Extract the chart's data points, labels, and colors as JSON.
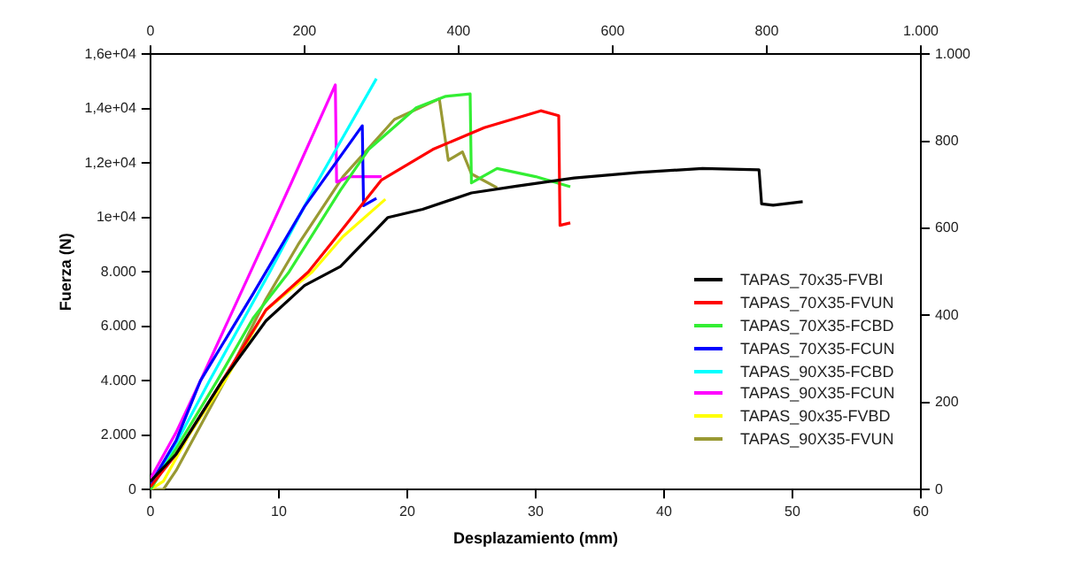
{
  "chart_data": {
    "type": "line",
    "xlabel": "Desplazamiento (mm)",
    "ylabel": "Fuerza (N)",
    "xlim": [
      0,
      60
    ],
    "xticks": [
      0,
      10,
      20,
      30,
      40,
      50,
      60
    ],
    "ylim": [
      0,
      16000
    ],
    "yticks": [
      0,
      {
        "value": 2000,
        "label": "2.000"
      },
      {
        "value": 4000,
        "label": "4.000"
      },
      {
        "value": 6000,
        "label": "6.000"
      },
      {
        "value": 8000,
        "label": "8.000"
      },
      {
        "value": 10000,
        "label": "1e+04"
      },
      {
        "value": 12000,
        "label": "1,2e+04"
      },
      {
        "value": 14000,
        "label": "1,4e+04"
      },
      {
        "value": 16000,
        "label": "1,6e+04"
      }
    ],
    "x2lim": [
      0,
      1000
    ],
    "x2ticks": [
      0,
      200,
      400,
      600,
      800,
      {
        "value": 1000,
        "label": "1.000"
      }
    ],
    "y2lim": [
      0,
      1000
    ],
    "y2ticks": [
      0,
      200,
      400,
      600,
      800,
      {
        "value": 1000,
        "label": "1.000"
      }
    ],
    "grid": false,
    "legend": "right",
    "marker": "none",
    "line_style": "solid",
    "series": [
      {
        "name": "TAPAS_70x35-FVBI",
        "color": "#000000",
        "x": [
          0,
          2,
          5.6,
          9,
          12,
          14.8,
          18.5,
          21.2,
          25,
          28.5,
          33,
          38,
          43,
          47.4,
          47.6,
          48.5,
          50.8
        ],
        "values": [
          300,
          1300,
          4000,
          6200,
          7500,
          8200,
          10000,
          10300,
          10900,
          11150,
          11450,
          11650,
          11800,
          11750,
          10500,
          10450,
          10580
        ]
      },
      {
        "name": "TAPAS_70X35-FVUN",
        "color": "#ff0000",
        "x": [
          0,
          2,
          5.6,
          9,
          12.3,
          14,
          18,
          22,
          26,
          30.4,
          31.8,
          31.9,
          32.7
        ],
        "values": [
          100,
          1300,
          4000,
          6600,
          8000,
          9000,
          11380,
          12500,
          13300,
          13920,
          13740,
          9710,
          9800
        ]
      },
      {
        "name": "TAPAS_70X35-FCBD",
        "color": "#33ee33",
        "x": [
          0,
          2,
          5.2,
          8,
          10.8,
          14.8,
          17,
          20.7,
          23,
          24.9,
          25,
          27,
          30,
          32.7
        ],
        "values": [
          0,
          1500,
          4000,
          6300,
          8000,
          11000,
          12500,
          14030,
          14450,
          14540,
          11270,
          11800,
          11500,
          11130
        ]
      },
      {
        "name": "TAPAS_70X35-FCUN",
        "color": "#0000ff",
        "x": [
          0,
          2,
          3.9,
          8,
          12,
          16.5,
          16.6,
          17.6
        ],
        "values": [
          200,
          1800,
          4000,
          7200,
          10400,
          13370,
          10430,
          10700
        ]
      },
      {
        "name": "TAPAS_90X35-FCBD",
        "color": "#00ffff",
        "x": [
          0,
          2,
          4.6,
          9.3,
          13,
          17.6
        ],
        "values": [
          0,
          1700,
          4000,
          8000,
          11300,
          15100
        ]
      },
      {
        "name": "TAPAS_90X35-FCUN",
        "color": "#ff00ff",
        "x": [
          0,
          2,
          3.9,
          7.8,
          11,
          14.4,
          14.5,
          15.5,
          18
        ],
        "values": [
          400,
          2100,
          4000,
          8000,
          11300,
          14870,
          11300,
          11500,
          11500
        ]
      },
      {
        "name": "TAPAS_90x35-FVBD",
        "color": "#ffff00",
        "x": [
          0,
          1,
          3,
          5.8,
          9,
          12.6,
          15,
          18.3
        ],
        "values": [
          0,
          300,
          2000,
          4000,
          6600,
          8000,
          9300,
          10670
        ]
      },
      {
        "name": "TAPAS_90X35-FVUN",
        "color": "#999933",
        "x": [
          0,
          1,
          2,
          5.8,
          9,
          11.5,
          15,
          19,
          22.5,
          23.2,
          24.3,
          25,
          27
        ],
        "values": [
          0,
          0,
          700,
          4000,
          7000,
          9000,
          11500,
          13600,
          14360,
          12100,
          12410,
          11600,
          11090
        ]
      }
    ]
  }
}
